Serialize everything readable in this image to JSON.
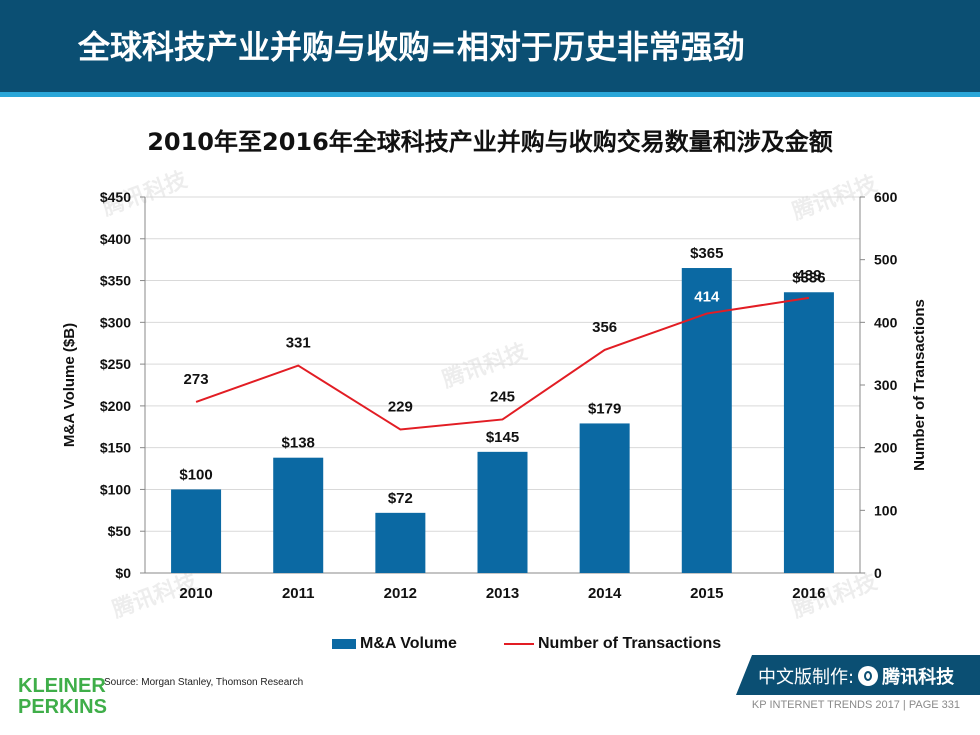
{
  "header": {
    "title": "全球科技产业并购与收购=相对于历史非常强劲"
  },
  "chart_data": {
    "type": "bar",
    "title": "2010年至2016年全球科技产业并购与收购交易数量和涉及金额",
    "categories": [
      "2010",
      "2011",
      "2012",
      "2013",
      "2014",
      "2015",
      "2016"
    ],
    "series": [
      {
        "name": "M&A Volume",
        "type": "bar",
        "axis": "left",
        "values": [
          100,
          138,
          72,
          145,
          179,
          365,
          336
        ],
        "labels": [
          "$100",
          "$138",
          "$72",
          "$145",
          "$179",
          "$365",
          "$336"
        ],
        "color": "#0b69a3"
      },
      {
        "name": "Number of Transactions",
        "type": "line",
        "axis": "right",
        "values": [
          273,
          331,
          229,
          245,
          356,
          414,
          439
        ],
        "labels": [
          "273",
          "331",
          "229",
          "245",
          "356",
          "414",
          "439"
        ],
        "color": "#e21d24"
      }
    ],
    "ylabel": "M&A Volume ($B)",
    "y2label": "Number of Transactions",
    "ylim": [
      0,
      450
    ],
    "y2lim": [
      0,
      600
    ],
    "yticks": [
      "$0",
      "$50",
      "$100",
      "$150",
      "$200",
      "$250",
      "$300",
      "$350",
      "$400",
      "$450"
    ],
    "y2ticks": [
      "0",
      "100",
      "200",
      "300",
      "400",
      "500",
      "600"
    ],
    "grid": true,
    "legend": "bottom"
  },
  "source": "Source: Morgan Stanley, Thomson Research",
  "logo": {
    "line1": "KLEINER",
    "line2": "PERKINS"
  },
  "badge": {
    "prefix": "中文版制作:",
    "brand": "腾讯科技"
  },
  "footer": "KP INTERNET TRENDS 2017  |  PAGE 331",
  "watermark": "腾讯科技"
}
